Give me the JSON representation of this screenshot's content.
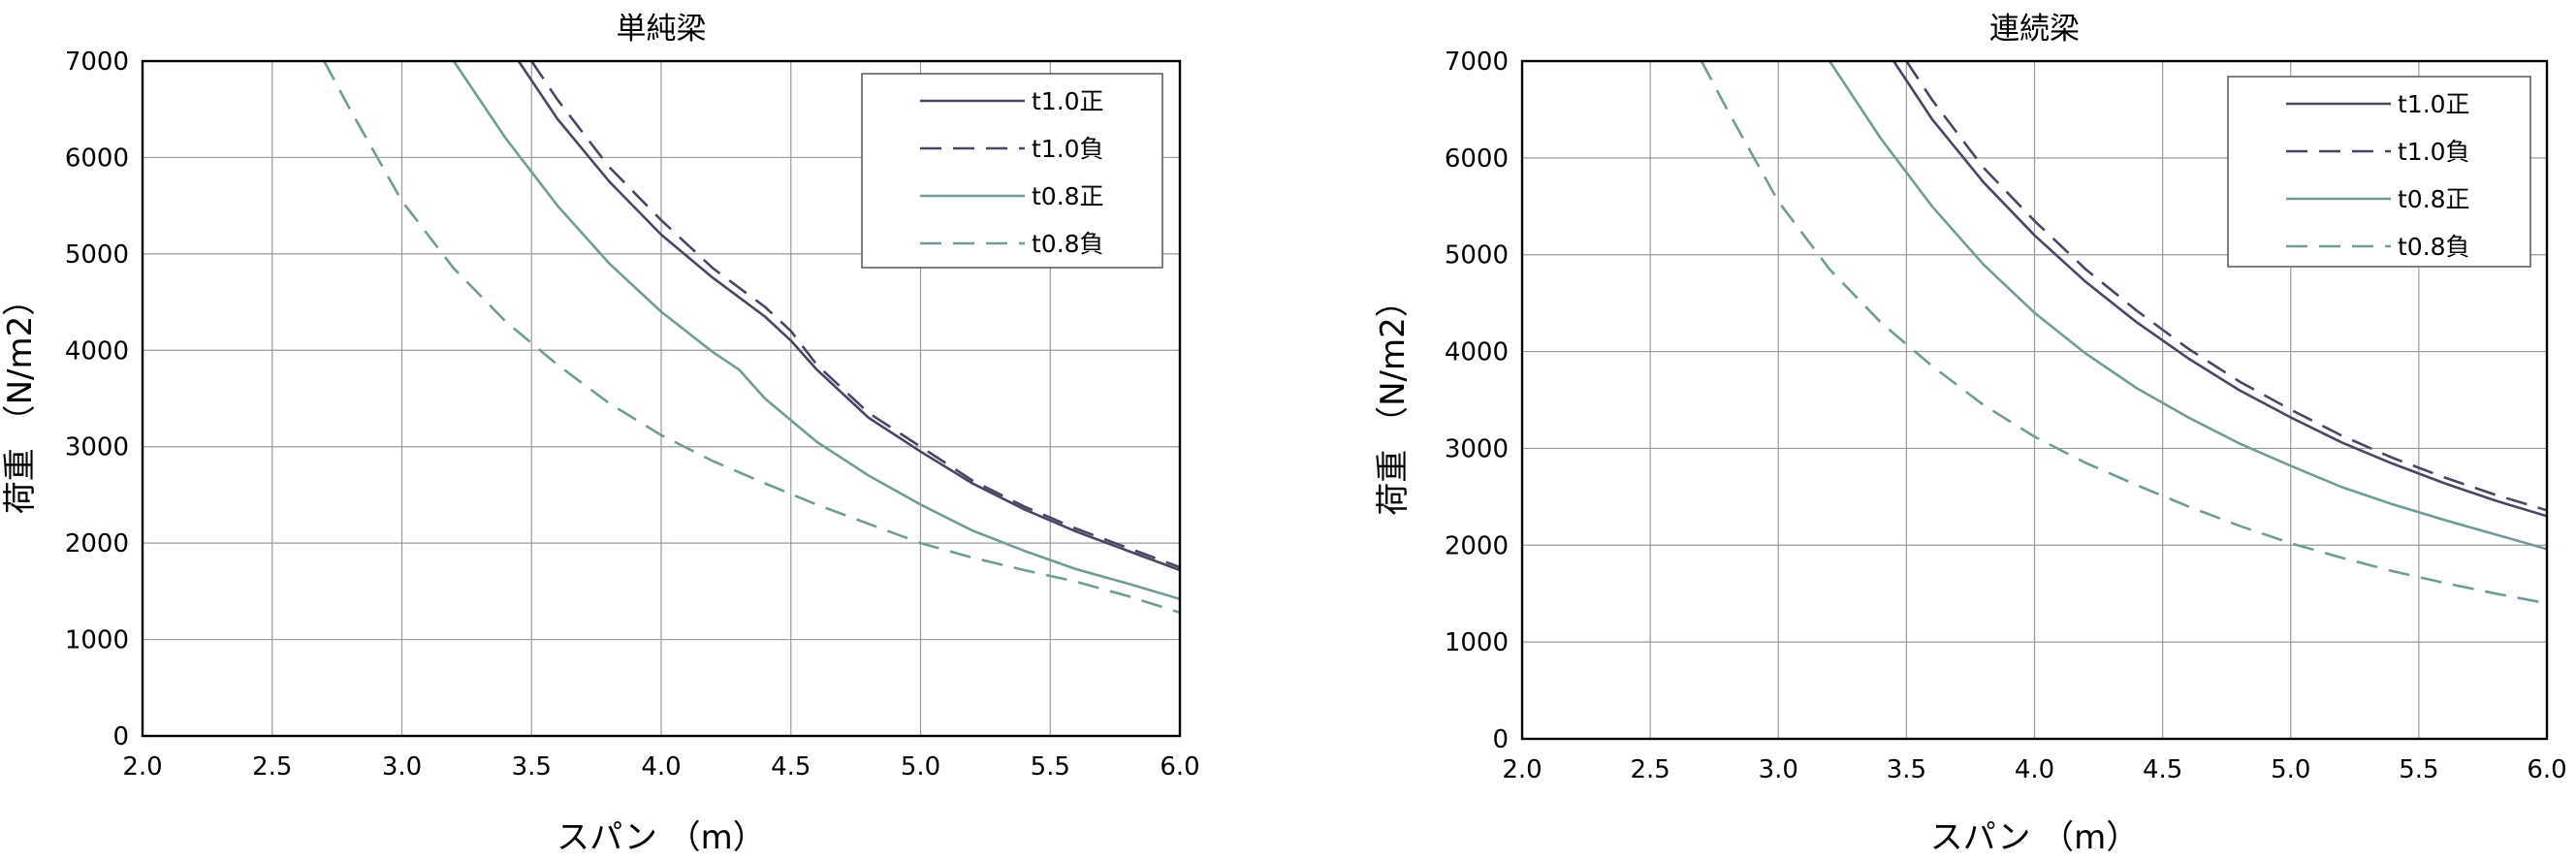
{
  "chart_data": [
    {
      "type": "line",
      "title": "単純梁",
      "xlabel": "スパン （m）",
      "ylabel": "荷重 （N/m2）",
      "xlim": [
        2.0,
        6.0
      ],
      "ylim": [
        0,
        7000
      ],
      "x_ticks": [
        "2.0",
        "2.5",
        "3.0",
        "3.5",
        "4.0",
        "4.5",
        "5.0",
        "5.5",
        "6.0"
      ],
      "y_ticks": [
        "0",
        "1000",
        "2000",
        "3000",
        "4000",
        "5000",
        "6000",
        "7000"
      ],
      "grid": true,
      "legend_position": "top-right",
      "series": [
        {
          "name": "t1.0正",
          "color": "#4b4563",
          "dash": "solid",
          "x": [
            3.45,
            3.6,
            3.8,
            4.0,
            4.2,
            4.4,
            4.5,
            4.6,
            4.8,
            5.0,
            5.2,
            5.4,
            5.6,
            5.8,
            6.0
          ],
          "y": [
            7000,
            6400,
            5750,
            5200,
            4750,
            4350,
            4100,
            3800,
            3300,
            2950,
            2620,
            2350,
            2120,
            1920,
            1720
          ]
        },
        {
          "name": "t1.0負",
          "color": "#4b4563",
          "dash": "dashed",
          "x": [
            3.5,
            3.6,
            3.8,
            4.0,
            4.2,
            4.4,
            4.5,
            4.6,
            4.8,
            5.0,
            5.2,
            5.4,
            5.6,
            5.8,
            6.0
          ],
          "y": [
            7000,
            6600,
            5900,
            5350,
            4850,
            4450,
            4200,
            3850,
            3350,
            3000,
            2650,
            2380,
            2150,
            1950,
            1750
          ]
        },
        {
          "name": "t0.8正",
          "color": "#6f9c97",
          "dash": "solid",
          "x": [
            3.2,
            3.4,
            3.6,
            3.8,
            4.0,
            4.2,
            4.3,
            4.4,
            4.6,
            4.8,
            5.0,
            5.2,
            5.4,
            5.6,
            5.8,
            6.0
          ],
          "y": [
            7000,
            6200,
            5500,
            4900,
            4400,
            3980,
            3800,
            3500,
            3050,
            2700,
            2400,
            2130,
            1920,
            1730,
            1580,
            1420
          ]
        },
        {
          "name": "t0.8負",
          "color": "#6f9c97",
          "dash": "dashed",
          "x": [
            2.7,
            2.8,
            3.0,
            3.2,
            3.4,
            3.6,
            3.8,
            4.0,
            4.2,
            4.4,
            4.6,
            4.8,
            5.0,
            5.2,
            5.4,
            5.6,
            5.8,
            6.0
          ],
          "y": [
            7000,
            6500,
            5550,
            4850,
            4300,
            3850,
            3450,
            3120,
            2850,
            2620,
            2400,
            2200,
            2000,
            1850,
            1720,
            1600,
            1450,
            1280
          ]
        }
      ]
    },
    {
      "type": "line",
      "title": "連続梁",
      "xlabel": "スパン （m）",
      "ylabel": "荷重 （N/m2）",
      "xlim": [
        2.0,
        6.0
      ],
      "ylim": [
        0,
        7000
      ],
      "x_ticks": [
        "2.0",
        "2.5",
        "3.0",
        "3.5",
        "4.0",
        "4.5",
        "5.0",
        "5.5",
        "6.0"
      ],
      "y_ticks": [
        "0",
        "1000",
        "2000",
        "3000",
        "4000",
        "5000",
        "6000",
        "7000"
      ],
      "grid": true,
      "legend_position": "top-right",
      "series": [
        {
          "name": "t1.0正",
          "color": "#4b4563",
          "dash": "solid",
          "x": [
            3.45,
            3.6,
            3.8,
            4.0,
            4.2,
            4.4,
            4.6,
            4.8,
            5.0,
            5.2,
            5.4,
            5.6,
            5.8,
            6.0
          ],
          "y": [
            7000,
            6400,
            5750,
            5200,
            4720,
            4300,
            3930,
            3600,
            3320,
            3060,
            2840,
            2640,
            2460,
            2300
          ]
        },
        {
          "name": "t1.0負",
          "color": "#4b4563",
          "dash": "dashed",
          "x": [
            3.5,
            3.6,
            3.8,
            4.0,
            4.2,
            4.4,
            4.6,
            4.8,
            5.0,
            5.2,
            5.4,
            5.6,
            5.8,
            6.0
          ],
          "y": [
            7000,
            6600,
            5900,
            5350,
            4850,
            4420,
            4030,
            3690,
            3400,
            3130,
            2900,
            2700,
            2520,
            2360
          ]
        },
        {
          "name": "t0.8正",
          "color": "#6f9c97",
          "dash": "solid",
          "x": [
            3.2,
            3.4,
            3.6,
            3.8,
            4.0,
            4.2,
            4.4,
            4.6,
            4.8,
            5.0,
            5.2,
            5.4,
            5.6,
            5.8,
            6.0
          ],
          "y": [
            7000,
            6200,
            5500,
            4900,
            4400,
            3980,
            3620,
            3320,
            3050,
            2820,
            2600,
            2420,
            2260,
            2110,
            1960
          ]
        },
        {
          "name": "t0.8負",
          "color": "#6f9c97",
          "dash": "dashed",
          "x": [
            2.7,
            2.8,
            3.0,
            3.2,
            3.4,
            3.6,
            3.8,
            4.0,
            4.2,
            4.4,
            4.6,
            4.8,
            5.0,
            5.2,
            5.4,
            5.6,
            5.8,
            6.0
          ],
          "y": [
            7000,
            6500,
            5550,
            4850,
            4300,
            3850,
            3450,
            3120,
            2850,
            2620,
            2400,
            2200,
            2020,
            1870,
            1730,
            1610,
            1500,
            1400
          ]
        }
      ]
    }
  ]
}
